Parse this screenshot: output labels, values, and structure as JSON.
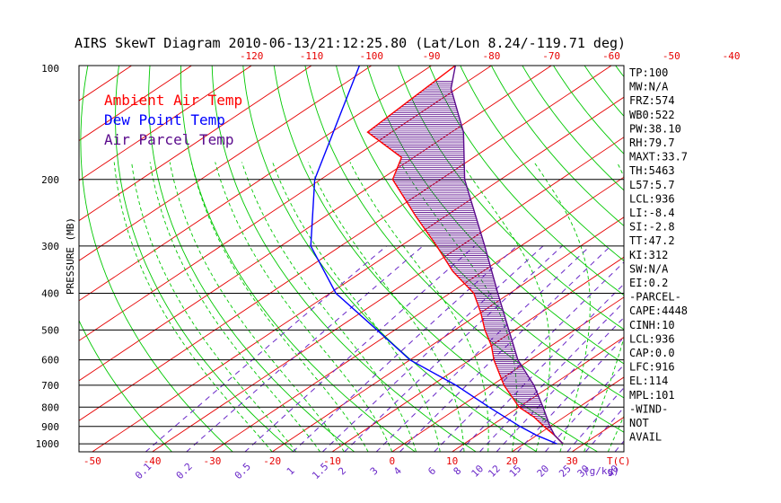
{
  "chart_data": {
    "type": "line",
    "title": "AIRS SkewT Diagram 2010-06-13/21:12:25.80 (Lat/Lon 8.24/-119.71 deg)",
    "ylabel": "PRESSURE (MB)",
    "xlabel_bottom_units": "T(C)",
    "xlabel_mixing_units": "(g/kg)",
    "pressure_ticks": [
      100,
      200,
      300,
      400,
      500,
      600,
      700,
      800,
      900,
      1000
    ],
    "ylim": [
      100,
      1050
    ],
    "yscale": "log",
    "top_temperature_ticks": [
      -120,
      -110,
      -100,
      -90,
      -80,
      -70,
      -60,
      -50,
      -40
    ],
    "bottom_temperature_ticks": [
      -50,
      -40,
      -30,
      -20,
      -10,
      0,
      10,
      20,
      30
    ],
    "mixing_ratio_labels": [
      "0.1",
      "0.2",
      "0.5",
      "1",
      "1.5",
      "2",
      "3",
      "4",
      "6",
      "8",
      "10",
      "12",
      "15",
      "20",
      "25",
      "30",
      "40"
    ],
    "mixing_ratio_values": [
      0.1,
      0.2,
      0.5,
      1,
      1.5,
      2,
      3,
      4,
      6,
      8,
      10,
      12,
      15,
      20,
      25,
      30,
      40
    ],
    "legend": [
      {
        "label": "Ambient Air Temp",
        "color": "#ff0000"
      },
      {
        "label": "Dew Point Temp",
        "color": "#0000ff"
      },
      {
        "label": "Air Parcel Temp",
        "color": "#5a0a8c"
      }
    ],
    "series": [
      {
        "name": "Ambient Air Temp",
        "points": [
          [
            100,
            -86
          ],
          [
            150,
            -84
          ],
          [
            175,
            -72
          ],
          [
            200,
            -68
          ],
          [
            250,
            -55
          ],
          [
            300,
            -44
          ],
          [
            350,
            -35
          ],
          [
            400,
            -26
          ],
          [
            450,
            -20
          ],
          [
            500,
            -15
          ],
          [
            550,
            -10
          ],
          [
            600,
            -6
          ],
          [
            700,
            2
          ],
          [
            800,
            10
          ],
          [
            850,
            15
          ],
          [
            900,
            19
          ],
          [
            950,
            23
          ],
          [
            1000,
            26.5
          ]
        ]
      },
      {
        "name": "Dew Point Temp",
        "points": [
          [
            100,
            -102
          ],
          [
            200,
            -81
          ],
          [
            300,
            -65
          ],
          [
            400,
            -49
          ],
          [
            500,
            -33
          ],
          [
            600,
            -20
          ],
          [
            700,
            -6
          ],
          [
            800,
            5
          ],
          [
            900,
            15
          ],
          [
            950,
            20
          ],
          [
            1000,
            25.5
          ]
        ]
      },
      {
        "name": "Air Parcel Temp",
        "points": [
          [
            100,
            -86
          ],
          [
            115,
            -81
          ],
          [
            150,
            -68
          ],
          [
            200,
            -56
          ],
          [
            250,
            -45
          ],
          [
            300,
            -36
          ],
          [
            400,
            -22
          ],
          [
            500,
            -11
          ],
          [
            600,
            -2
          ],
          [
            700,
            7
          ],
          [
            800,
            14
          ],
          [
            900,
            20
          ],
          [
            950,
            23
          ],
          [
            1000,
            26.5
          ]
        ]
      }
    ],
    "index_labels": [
      "TP:100",
      "MW:N/A",
      "FRZ:574",
      "WB0:522",
      "PW:38.10",
      "RH:79.7",
      "MAXT:33.7",
      "TH:5463",
      "L57:5.7",
      "LCL:936",
      "LI:-8.4",
      "SI:-2.8",
      "TT:47.2",
      "KI:312",
      "SW:N/A",
      "EI:0.2",
      "-PARCEL-",
      "CAPE:4448",
      "CINH:10",
      "LCL:936",
      "CAP:0.0",
      "LFC:916",
      "EL:114",
      "MPL:101",
      "-WIND-",
      "NOT",
      "AVAIL"
    ],
    "colors": {
      "isotherm": "#e60000",
      "dry_adiabat": "#00c800",
      "moist_adiabat": "#00c800",
      "mixing_ratio": "#6a28c8",
      "isobar": "#000000",
      "temperature": "#ff0000",
      "dewpoint": "#0000ff",
      "parcel": "#5a0a8c",
      "cape_hatch": "#5a0a8c"
    }
  }
}
